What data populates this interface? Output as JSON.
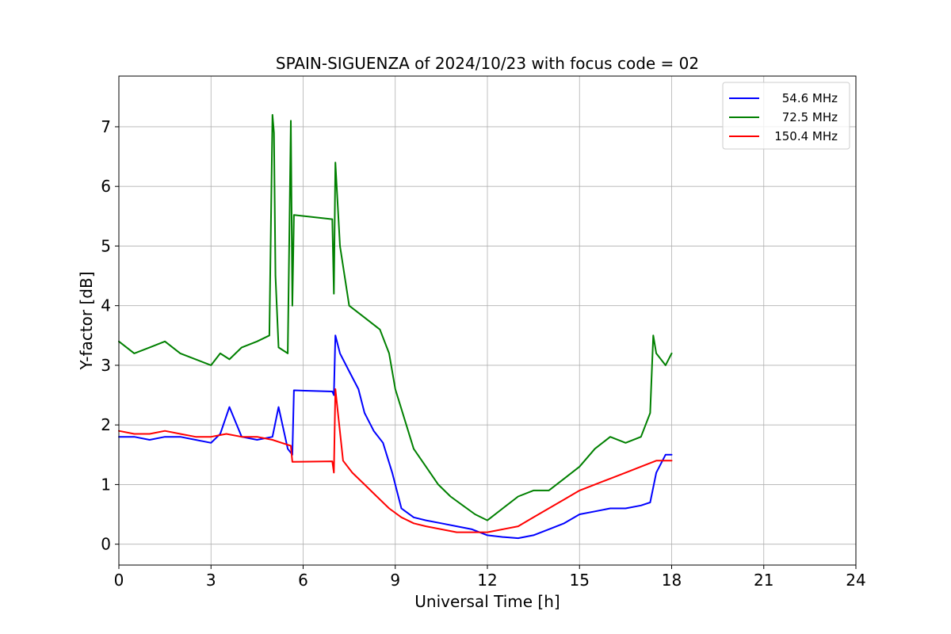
{
  "chart_data": {
    "type": "line",
    "title": "SPAIN-SIGUENZA of 2024/10/23 with focus code = 02",
    "xlabel": "Universal Time [h]",
    "ylabel": "Y-factor [dB]",
    "xlim": [
      0,
      24
    ],
    "ylim": [
      -0.35,
      7.85
    ],
    "xticks": [
      0,
      3,
      6,
      9,
      12,
      15,
      18,
      21,
      24
    ],
    "yticks": [
      0,
      1,
      2,
      3,
      4,
      5,
      6,
      7
    ],
    "grid": true,
    "legend_position": "top-right",
    "series": [
      {
        "name": "54.6 MHz",
        "color": "#0000ff",
        "x": [
          0,
          0.5,
          1,
          1.5,
          2,
          2.5,
          3,
          3.3,
          3.6,
          4,
          4.5,
          5,
          5.2,
          5.5,
          5.65,
          5.7,
          6.95,
          7.0,
          7.05,
          7.2,
          7.5,
          7.8,
          8.0,
          8.3,
          8.6,
          8.9,
          9.2,
          9.6,
          10.0,
          10.5,
          11.0,
          11.5,
          12.0,
          12.5,
          13.0,
          13.5,
          14.0,
          14.5,
          15.0,
          15.5,
          16.0,
          16.5,
          17.0,
          17.3,
          17.5,
          17.8,
          18.0
        ],
        "y": [
          1.8,
          1.8,
          1.75,
          1.8,
          1.8,
          1.75,
          1.7,
          1.85,
          2.3,
          1.8,
          1.75,
          1.8,
          2.3,
          1.6,
          1.5,
          2.58,
          2.56,
          2.5,
          3.5,
          3.2,
          2.9,
          2.6,
          2.2,
          1.9,
          1.7,
          1.2,
          0.6,
          0.45,
          0.4,
          0.35,
          0.3,
          0.25,
          0.15,
          0.12,
          0.1,
          0.15,
          0.25,
          0.35,
          0.5,
          0.55,
          0.6,
          0.6,
          0.65,
          0.7,
          1.2,
          1.5,
          1.5
        ]
      },
      {
        "name": "72.5 MHz",
        "color": "#008000",
        "x": [
          0,
          0.5,
          1,
          1.5,
          2,
          2.5,
          3,
          3.3,
          3.6,
          4,
          4.5,
          4.9,
          5.0,
          5.05,
          5.1,
          5.2,
          5.5,
          5.6,
          5.65,
          5.7,
          6.95,
          7.0,
          7.05,
          7.2,
          7.5,
          8.0,
          8.5,
          8.8,
          9.0,
          9.3,
          9.6,
          10.0,
          10.4,
          10.8,
          11.2,
          11.6,
          12.0,
          12.5,
          13.0,
          13.5,
          14.0,
          14.5,
          15.0,
          15.5,
          16.0,
          16.5,
          17.0,
          17.3,
          17.4,
          17.5,
          17.8,
          18.0
        ],
        "y": [
          3.4,
          3.2,
          3.3,
          3.4,
          3.2,
          3.1,
          3.0,
          3.2,
          3.1,
          3.3,
          3.4,
          3.5,
          7.2,
          6.9,
          4.5,
          3.3,
          3.2,
          7.1,
          4.0,
          5.52,
          5.45,
          4.2,
          6.4,
          5.0,
          4.0,
          3.8,
          3.6,
          3.2,
          2.6,
          2.1,
          1.6,
          1.3,
          1.0,
          0.8,
          0.65,
          0.5,
          0.4,
          0.6,
          0.8,
          0.9,
          0.9,
          1.1,
          1.3,
          1.6,
          1.8,
          1.7,
          1.8,
          2.2,
          3.5,
          3.2,
          3.0,
          3.2
        ]
      },
      {
        "name": "150.4 MHz",
        "color": "#ff0000",
        "x": [
          0,
          0.5,
          1,
          1.5,
          2,
          2.5,
          3,
          3.5,
          4,
          4.5,
          5,
          5.3,
          5.6,
          5.65,
          6.95,
          7.0,
          7.05,
          7.3,
          7.6,
          8.0,
          8.4,
          8.8,
          9.2,
          9.6,
          10.0,
          10.5,
          11.0,
          11.5,
          12.0,
          12.5,
          13.0,
          13.5,
          14.0,
          14.5,
          15.0,
          15.5,
          16.0,
          16.5,
          17.0,
          17.5,
          18.0
        ],
        "y": [
          1.9,
          1.85,
          1.85,
          1.9,
          1.85,
          1.8,
          1.8,
          1.85,
          1.8,
          1.8,
          1.75,
          1.7,
          1.65,
          1.38,
          1.39,
          1.2,
          2.6,
          1.4,
          1.2,
          1.0,
          0.8,
          0.6,
          0.45,
          0.35,
          0.3,
          0.25,
          0.2,
          0.2,
          0.2,
          0.25,
          0.3,
          0.45,
          0.6,
          0.75,
          0.9,
          1.0,
          1.1,
          1.2,
          1.3,
          1.4,
          1.4
        ]
      }
    ]
  }
}
